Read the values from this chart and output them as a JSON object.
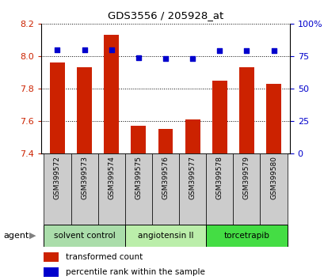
{
  "title": "GDS3556 / 205928_at",
  "samples": [
    "GSM399572",
    "GSM399573",
    "GSM399574",
    "GSM399575",
    "GSM399576",
    "GSM399577",
    "GSM399578",
    "GSM399579",
    "GSM399580"
  ],
  "transformed_count": [
    7.96,
    7.93,
    8.13,
    7.57,
    7.55,
    7.61,
    7.85,
    7.93,
    7.83
  ],
  "percentile_rank": [
    80,
    80,
    80,
    74,
    73,
    73,
    79,
    79,
    79
  ],
  "y_min": 7.4,
  "y_max": 8.2,
  "y_ticks": [
    7.4,
    7.6,
    7.8,
    8.0,
    8.2
  ],
  "y2_ticks": [
    0,
    25,
    50,
    75,
    100
  ],
  "y2_labels": [
    "0",
    "25",
    "50",
    "75",
    "100%"
  ],
  "bar_color": "#cc2200",
  "dot_color": "#0000cc",
  "bar_bottom": 7.4,
  "groups": [
    {
      "label": "solvent control",
      "start": 0,
      "end": 3,
      "color": "#aaddaa"
    },
    {
      "label": "angiotensin II",
      "start": 3,
      "end": 6,
      "color": "#bbeeaa"
    },
    {
      "label": "torcetrapib",
      "start": 6,
      "end": 9,
      "color": "#44dd44"
    }
  ],
  "agent_label": "agent",
  "legend_bar_label": "transformed count",
  "legend_dot_label": "percentile rank within the sample",
  "grid_color": "#888888",
  "background_color": "#ffffff",
  "tick_label_color_left": "#cc2200",
  "tick_label_color_right": "#0000cc",
  "sample_box_color": "#cccccc"
}
